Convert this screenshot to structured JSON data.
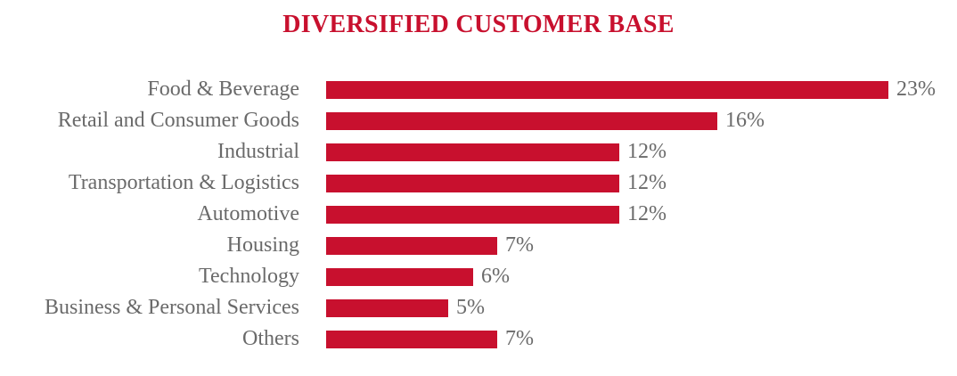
{
  "colors": {
    "accent": "#C8102E",
    "label_text": "#6A6A6A",
    "background": "#FFFFFF"
  },
  "chart_data": {
    "type": "bar",
    "orientation": "horizontal",
    "title": "DIVERSIFIED CUSTOMER BASE",
    "categories": [
      "Food & Beverage",
      "Retail and Consumer Goods",
      "Industrial",
      "Transportation & Logistics",
      "Automotive",
      "Housing",
      "Technology",
      "Business & Personal Services",
      "Others"
    ],
    "values": [
      23,
      16,
      12,
      12,
      12,
      7,
      6,
      5,
      7
    ],
    "value_labels": [
      "23%",
      "16%",
      "12%",
      "12%",
      "12%",
      "7%",
      "6%",
      "5%",
      "7%"
    ],
    "unit": "%",
    "xlim": [
      0,
      23
    ],
    "grid": false,
    "axes_visible": false,
    "data_labels_position": "end-of-bar"
  }
}
